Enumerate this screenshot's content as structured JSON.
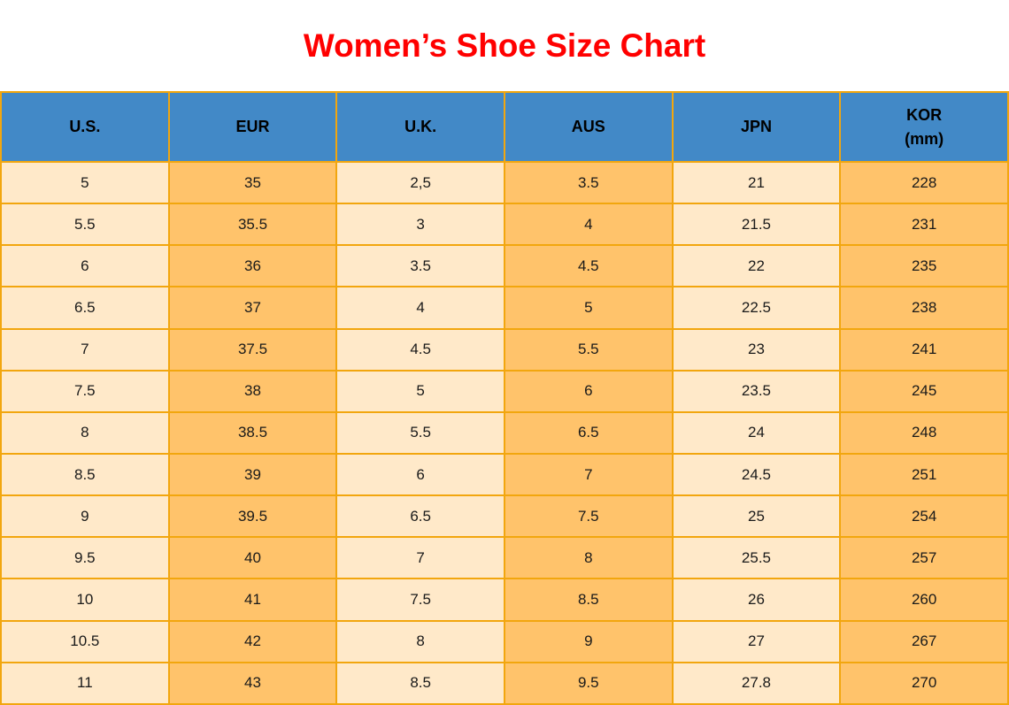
{
  "title": "Women’s Shoe Size Chart",
  "colors": {
    "title": "#ff0000",
    "header_bg": "#4289c7",
    "header_text": "#000000",
    "cell_light": "#ffe9c9",
    "cell_dark": "#ffc36b",
    "border": "#f2a60e",
    "text": "#1a1a1a"
  },
  "chart_data": {
    "type": "table",
    "title": "Women’s Shoe Size Chart",
    "legend_position": "none",
    "grid": "all-borders",
    "columns": [
      {
        "key": "us",
        "label": "U.S."
      },
      {
        "key": "eur",
        "label": "EUR"
      },
      {
        "key": "uk",
        "label": "U.K."
      },
      {
        "key": "aus",
        "label": "AUS"
      },
      {
        "key": "jpn",
        "label": "JPN"
      },
      {
        "key": "kor",
        "label": "KOR",
        "sublabel": "(mm)"
      }
    ],
    "rows": [
      [
        "5",
        "35",
        "2,5",
        "3.5",
        "21",
        "228"
      ],
      [
        "5.5",
        "35.5",
        "3",
        "4",
        "21.5",
        "231"
      ],
      [
        "6",
        "36",
        "3.5",
        "4.5",
        "22",
        "235"
      ],
      [
        "6.5",
        "37",
        "4",
        "5",
        "22.5",
        "238"
      ],
      [
        "7",
        "37.5",
        "4.5",
        "5.5",
        "23",
        "241"
      ],
      [
        "7.5",
        "38",
        "5",
        "6",
        "23.5",
        "245"
      ],
      [
        "8",
        "38.5",
        "5.5",
        "6.5",
        "24",
        "248"
      ],
      [
        "8.5",
        "39",
        "6",
        "7",
        "24.5",
        "251"
      ],
      [
        "9",
        "39.5",
        "6.5",
        "7.5",
        "25",
        "254"
      ],
      [
        "9.5",
        "40",
        "7",
        "8",
        "25.5",
        "257"
      ],
      [
        "10",
        "41",
        "7.5",
        "8.5",
        "26",
        "260"
      ],
      [
        "10.5",
        "42",
        "8",
        "9",
        "27",
        "267"
      ],
      [
        "11",
        "43",
        "8.5",
        "9.5",
        "27.8",
        "270"
      ]
    ]
  }
}
